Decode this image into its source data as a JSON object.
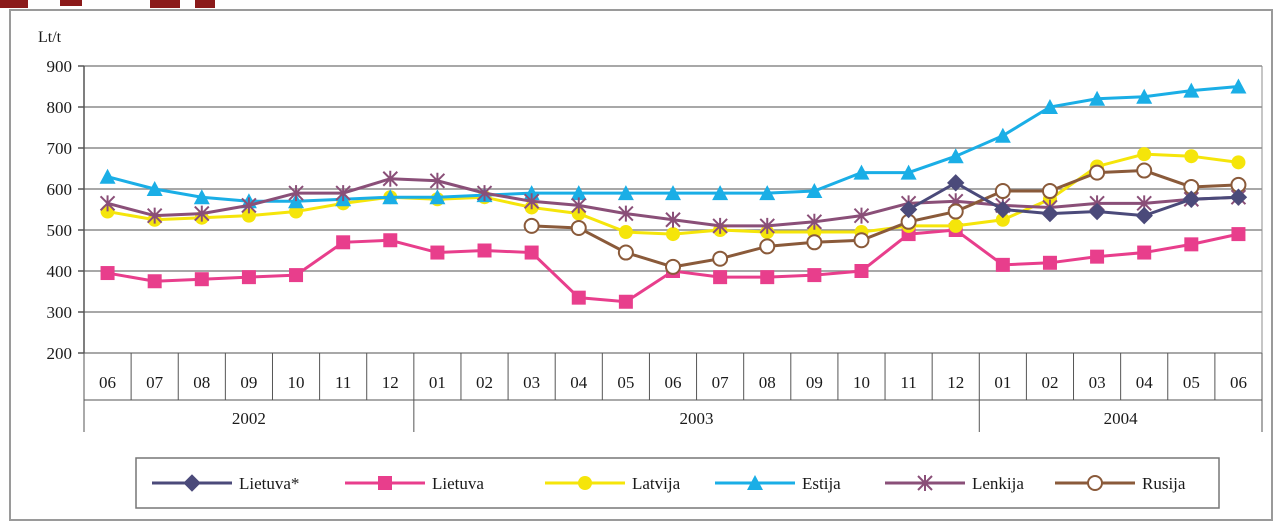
{
  "chart_data": {
    "type": "line",
    "ylabel": "Lt/t",
    "ylim": [
      200,
      900
    ],
    "yticks": [
      200,
      300,
      400,
      500,
      600,
      700,
      800,
      900
    ],
    "grid": true,
    "legend_position": "bottom",
    "categories": [
      "06",
      "07",
      "08",
      "09",
      "10",
      "11",
      "12",
      "01",
      "02",
      "03",
      "04",
      "05",
      "06",
      "07",
      "08",
      "09",
      "10",
      "11",
      "12",
      "01",
      "02",
      "03",
      "04",
      "05",
      "06"
    ],
    "groups": [
      {
        "label": "2002",
        "start": 0,
        "end": 6
      },
      {
        "label": "2003",
        "start": 7,
        "end": 18
      },
      {
        "label": "2004",
        "start": 19,
        "end": 24
      }
    ],
    "series": [
      {
        "name": "Lietuva*",
        "color": "#4b4a7a",
        "marker": "diamond",
        "values": [
          null,
          null,
          null,
          null,
          null,
          null,
          null,
          null,
          null,
          null,
          null,
          null,
          null,
          null,
          null,
          null,
          null,
          550,
          615,
          550,
          540,
          545,
          535,
          575,
          580
        ]
      },
      {
        "name": "Lietuva",
        "color": "#e83e8c",
        "marker": "square",
        "values": [
          395,
          375,
          380,
          385,
          390,
          470,
          475,
          445,
          450,
          445,
          335,
          325,
          400,
          385,
          385,
          390,
          400,
          490,
          500,
          415,
          420,
          435,
          445,
          465,
          490
        ]
      },
      {
        "name": "Latvija",
        "color": "#f5e50a",
        "marker": "circle",
        "values": [
          545,
          525,
          530,
          535,
          545,
          565,
          580,
          575,
          580,
          555,
          540,
          495,
          490,
          500,
          495,
          495,
          495,
          510,
          510,
          525,
          575,
          655,
          685,
          680,
          665
        ]
      },
      {
        "name": "Estija",
        "color": "#1aaee6",
        "marker": "triangle",
        "values": [
          630,
          600,
          580,
          570,
          570,
          575,
          580,
          580,
          585,
          590,
          590,
          590,
          590,
          590,
          590,
          595,
          640,
          640,
          680,
          730,
          800,
          820,
          825,
          840,
          850
        ]
      },
      {
        "name": "Lenkija",
        "color": "#8a4f78",
        "marker": "star",
        "values": [
          565,
          535,
          540,
          560,
          590,
          590,
          625,
          620,
          590,
          570,
          560,
          540,
          525,
          510,
          510,
          520,
          535,
          565,
          570,
          560,
          555,
          565,
          565,
          575,
          580
        ]
      },
      {
        "name": "Rusija",
        "color": "#8a5a3a",
        "marker": "open-circle",
        "values": [
          null,
          null,
          null,
          null,
          null,
          null,
          null,
          null,
          null,
          510,
          505,
          445,
          410,
          430,
          460,
          470,
          475,
          520,
          545,
          595,
          595,
          640,
          645,
          605,
          610
        ]
      }
    ]
  }
}
